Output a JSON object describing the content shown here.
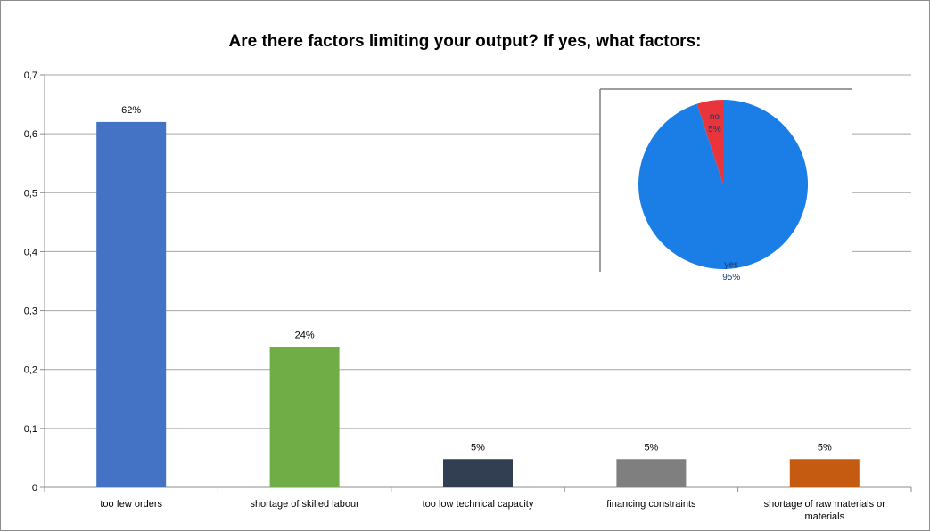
{
  "chart_data": [
    {
      "type": "bar",
      "title": "Are there factors limiting your output? If yes, what factors:",
      "categories": [
        "too few orders",
        "shortage of skilled labour",
        "too low technical capacity",
        "financing constraints",
        "shortage of raw materials or materials"
      ],
      "category_lines": [
        [
          "too few orders"
        ],
        [
          "shortage of skilled labour"
        ],
        [
          "too low technical capacity"
        ],
        [
          "financing constraints"
        ],
        [
          "shortage of raw materials or",
          "materials"
        ]
      ],
      "values": [
        0.62,
        0.238,
        0.048,
        0.048,
        0.048
      ],
      "data_labels": [
        "62%",
        "24%",
        "5%",
        "5%",
        "5%"
      ],
      "bar_colors": [
        "#4472c4",
        "#70ad47",
        "#323f52",
        "#7f7f7f",
        "#c55a11"
      ],
      "ylim": [
        0,
        0.7
      ],
      "y_ticks": [
        0,
        0.1,
        0.2,
        0.3,
        0.4,
        0.5,
        0.6,
        0.7
      ],
      "y_tick_labels": [
        "0",
        "0,1",
        "0,2",
        "0,3",
        "0,4",
        "0,5",
        "0,6",
        "0,7"
      ],
      "grid": true,
      "xlabel": "",
      "ylabel": ""
    },
    {
      "type": "pie",
      "labels": [
        "yes",
        "no"
      ],
      "values": [
        95,
        5
      ],
      "data_labels": [
        "95%",
        "5%"
      ],
      "colors": [
        "#1a7ee6",
        "#e8343a"
      ]
    }
  ]
}
